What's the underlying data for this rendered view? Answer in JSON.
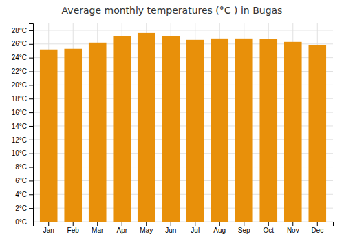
{
  "chart_data": {
    "type": "bar",
    "title": "Average monthly temperatures (°C ) in Bugas",
    "categories": [
      "Jan",
      "Feb",
      "Mar",
      "Apr",
      "May",
      "Jun",
      "Jul",
      "Aug",
      "Sep",
      "Oct",
      "Nov",
      "Dec"
    ],
    "values": [
      25.2,
      25.3,
      26.2,
      27.1,
      27.6,
      27.1,
      26.6,
      26.8,
      26.8,
      26.7,
      26.3,
      25.8
    ],
    "color": "#E8900A",
    "ylim": [
      0,
      29
    ],
    "yticks": [
      {
        "value": 0,
        "label": "0°C"
      },
      {
        "value": 2,
        "label": "2°C"
      },
      {
        "value": 4,
        "label": "4°C"
      },
      {
        "value": 6,
        "label": "6°C"
      },
      {
        "value": 8,
        "label": "8°C"
      },
      {
        "value": 10,
        "label": "10°C"
      },
      {
        "value": 12,
        "label": "12°C"
      },
      {
        "value": 14,
        "label": "14°C"
      },
      {
        "value": 16,
        "label": "16°C"
      },
      {
        "value": 18,
        "label": "18°C"
      },
      {
        "value": 20,
        "label": "20°C"
      },
      {
        "value": 22,
        "label": "22°C"
      },
      {
        "value": 24,
        "label": "24°C"
      },
      {
        "value": 26,
        "label": "26°C"
      },
      {
        "value": 28,
        "label": "28°C"
      }
    ],
    "grid": true
  }
}
